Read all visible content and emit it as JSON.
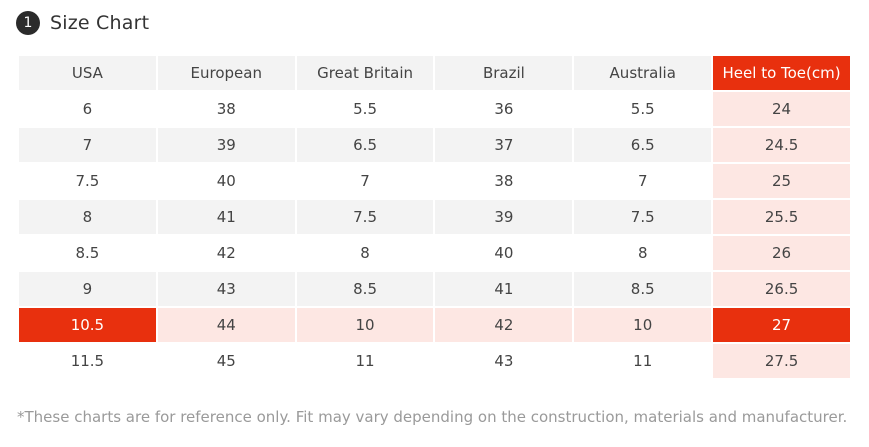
{
  "header": {
    "badge": "1",
    "title": "Size Chart"
  },
  "table": {
    "columns": [
      "USA",
      "European",
      "Great Britain",
      "Brazil",
      "Australia",
      "Heel to Toe(cm)"
    ],
    "rows": [
      [
        "6",
        "38",
        "5.5",
        "36",
        "5.5",
        "24"
      ],
      [
        "7",
        "39",
        "6.5",
        "37",
        "6.5",
        "24.5"
      ],
      [
        "7.5",
        "40",
        "7",
        "38",
        "7",
        "25"
      ],
      [
        "8",
        "41",
        "7.5",
        "39",
        "7.5",
        "25.5"
      ],
      [
        "8.5",
        "42",
        "8",
        "40",
        "8",
        "26"
      ],
      [
        "9",
        "43",
        "8.5",
        "41",
        "8.5",
        "26.5"
      ],
      [
        "10.5",
        "44",
        "10",
        "42",
        "10",
        "27"
      ],
      [
        "11.5",
        "45",
        "11",
        "43",
        "11",
        "27.5"
      ]
    ]
  },
  "note": "*These charts are for reference only. Fit may vary depending on the construction, materials and manufacturer.",
  "colors": {
    "accent": "#e8300e",
    "accent_light": "#fde7e3",
    "row_stripe": "#f3f3f3"
  }
}
